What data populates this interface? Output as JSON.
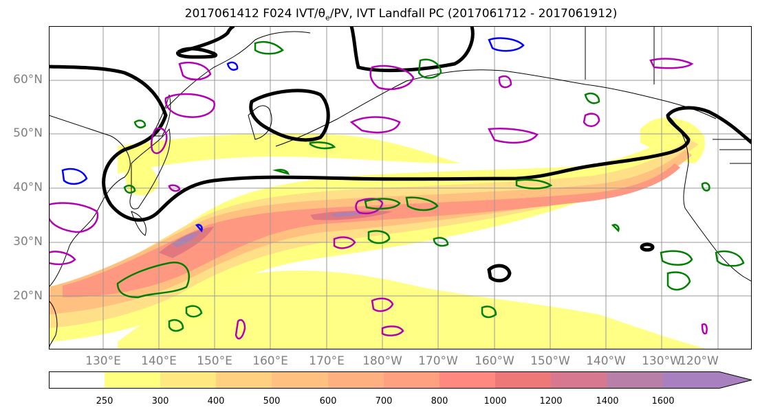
{
  "title": {
    "prefix": "2017061412 F024 IVT/",
    "theta": "θ",
    "theta_sub": "e",
    "suffix": "/PV, IVT Landfall PC (2017061712 - 2017061912)"
  },
  "map": {
    "lat_labels": [
      "60°N",
      "50°N",
      "40°N",
      "30°N",
      "20°N"
    ],
    "lon_labels": [
      "130°E",
      "140°E",
      "150°E",
      "160°E",
      "170°E",
      "180°W",
      "170°W",
      "160°W",
      "150°W",
      "140°W",
      "130°W",
      "120°W"
    ],
    "colors": {
      "ivt_contour": "#000000",
      "pv_positive": "#b400b4",
      "pv_negative": "#0000ff",
      "theta_e": "#008000",
      "grid": "#999999",
      "coast": "#000000"
    }
  },
  "colorbar": {
    "ticks": [
      "250",
      "300",
      "400",
      "500",
      "600",
      "700",
      "800",
      "1000",
      "1200",
      "1400",
      "1600"
    ],
    "colors": [
      "#ffffff",
      "#ffff80",
      "#ffe880",
      "#ffd080",
      "#ffc080",
      "#ffb080",
      "#ffa080",
      "#ff8880",
      "#ee7878",
      "#d87890",
      "#b880a8",
      "#a880c0"
    ]
  }
}
